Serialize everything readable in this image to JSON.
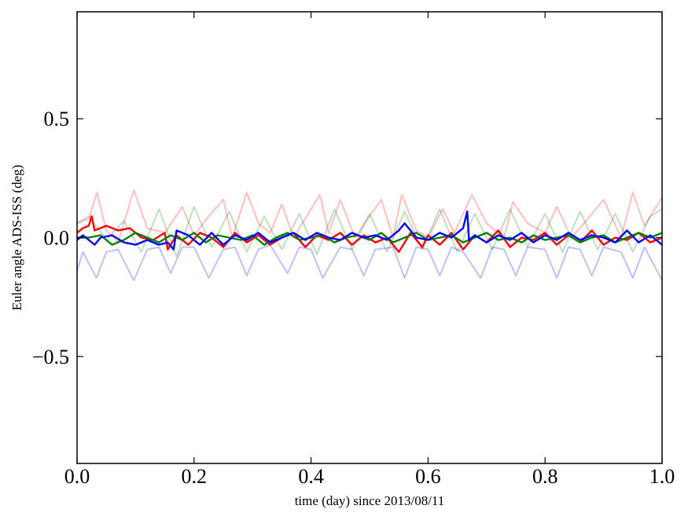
{
  "chart_data": {
    "type": "line",
    "xlabel": "time (day) since 2013/08/11",
    "ylabel": "Euler angle ADS-ISS (deg)",
    "xlim": [
      0.0,
      1.0
    ],
    "ylim": [
      -0.95,
      0.95
    ],
    "x_ticks": [
      0.0,
      0.2,
      0.4,
      0.6,
      0.8,
      1.0
    ],
    "x_tick_labels": [
      "0.0",
      "0.2",
      "0.4",
      "0.6",
      "0.8",
      "1.0"
    ],
    "y_ticks": [
      -0.5,
      0.0,
      0.5
    ],
    "y_tick_labels": [
      "−0.5",
      "0.0",
      "0.5"
    ],
    "grid": false,
    "legend": "none",
    "series": [
      {
        "color": "#ff0000",
        "opacity": 0.25,
        "x": [
          0.0,
          0.02,
          0.034,
          0.05,
          0.07,
          0.097,
          0.12,
          0.15,
          0.18,
          0.2,
          0.225,
          0.25,
          0.265,
          0.29,
          0.31,
          0.33,
          0.35,
          0.37,
          0.395,
          0.415,
          0.43,
          0.45,
          0.475,
          0.5,
          0.52,
          0.54,
          0.555,
          0.58,
          0.6,
          0.625,
          0.645,
          0.675,
          0.7,
          0.73,
          0.745,
          0.77,
          0.8,
          0.82,
          0.845,
          0.87,
          0.9,
          0.93,
          0.95,
          0.97,
          1.0
        ],
        "y": [
          0.06,
          0.08,
          0.19,
          0.03,
          -0.02,
          0.2,
          0.04,
          0.02,
          0.13,
          0.01,
          0.09,
          0.16,
          0.0,
          0.19,
          0.06,
          0.02,
          0.14,
          0.0,
          0.1,
          0.18,
          0.02,
          0.16,
          0.0,
          0.09,
          0.16,
          0.0,
          0.18,
          0.03,
          0.0,
          0.12,
          0.02,
          0.18,
          0.06,
          0.0,
          0.15,
          0.06,
          0.02,
          0.13,
          0.0,
          0.07,
          0.16,
          0.0,
          0.19,
          0.05,
          0.17
        ]
      },
      {
        "color": "#008000",
        "opacity": 0.25,
        "x": [
          0.0,
          0.02,
          0.05,
          0.08,
          0.11,
          0.14,
          0.17,
          0.2,
          0.23,
          0.26,
          0.29,
          0.32,
          0.35,
          0.38,
          0.41,
          0.44,
          0.47,
          0.5,
          0.53,
          0.56,
          0.59,
          0.62,
          0.65,
          0.68,
          0.71,
          0.74,
          0.77,
          0.8,
          0.83,
          0.86,
          0.89,
          0.92,
          0.95,
          0.98,
          1.0
        ],
        "y": [
          0.06,
          0.09,
          -0.01,
          0.07,
          -0.06,
          0.12,
          -0.08,
          0.13,
          -0.04,
          0.11,
          -0.06,
          0.09,
          -0.05,
          0.1,
          -0.07,
          0.12,
          -0.05,
          0.1,
          -0.06,
          0.11,
          -0.05,
          0.12,
          -0.06,
          0.1,
          -0.05,
          0.12,
          -0.04,
          0.1,
          -0.06,
          0.11,
          -0.05,
          0.1,
          -0.06,
          0.09,
          0.12
        ]
      },
      {
        "color": "#0000ff",
        "opacity": 0.25,
        "x": [
          0.0,
          0.01,
          0.033,
          0.05,
          0.07,
          0.097,
          0.12,
          0.14,
          0.16,
          0.18,
          0.2,
          0.225,
          0.25,
          0.27,
          0.29,
          0.31,
          0.33,
          0.36,
          0.38,
          0.4,
          0.42,
          0.45,
          0.47,
          0.49,
          0.51,
          0.54,
          0.56,
          0.58,
          0.6,
          0.62,
          0.64,
          0.66,
          0.69,
          0.71,
          0.73,
          0.75,
          0.77,
          0.8,
          0.82,
          0.84,
          0.86,
          0.88,
          0.9,
          0.93,
          0.95,
          0.97,
          1.0
        ],
        "y": [
          -0.14,
          -0.06,
          -0.17,
          -0.06,
          -0.05,
          -0.18,
          -0.05,
          -0.04,
          -0.15,
          -0.04,
          -0.04,
          -0.17,
          -0.05,
          -0.04,
          -0.16,
          -0.05,
          -0.03,
          -0.15,
          -0.04,
          -0.05,
          -0.17,
          -0.04,
          -0.05,
          -0.16,
          -0.05,
          -0.04,
          -0.17,
          -0.04,
          -0.05,
          -0.16,
          -0.04,
          -0.06,
          -0.17,
          -0.04,
          -0.05,
          -0.16,
          -0.04,
          -0.05,
          -0.17,
          -0.04,
          -0.05,
          -0.16,
          -0.04,
          -0.06,
          -0.17,
          -0.04,
          -0.18
        ]
      },
      {
        "color": "#ff0000",
        "opacity": 1,
        "x": [
          0.0,
          0.01,
          0.02,
          0.025,
          0.03,
          0.05,
          0.07,
          0.09,
          0.11,
          0.13,
          0.15,
          0.155,
          0.17,
          0.19,
          0.21,
          0.23,
          0.25,
          0.27,
          0.29,
          0.31,
          0.33,
          0.35,
          0.37,
          0.39,
          0.41,
          0.43,
          0.45,
          0.47,
          0.49,
          0.51,
          0.53,
          0.55,
          0.57,
          0.59,
          0.6,
          0.62,
          0.64,
          0.66,
          0.68,
          0.7,
          0.72,
          0.74,
          0.76,
          0.78,
          0.8,
          0.82,
          0.84,
          0.86,
          0.88,
          0.9,
          0.92,
          0.94,
          0.96,
          0.98,
          1.0
        ],
        "y": [
          0.02,
          0.04,
          0.05,
          0.09,
          0.03,
          0.05,
          0.03,
          0.04,
          0.0,
          -0.01,
          0.02,
          -0.05,
          0.01,
          -0.03,
          0.02,
          0.0,
          -0.04,
          0.02,
          -0.02,
          0.01,
          -0.03,
          0.0,
          0.02,
          -0.04,
          0.01,
          -0.01,
          0.02,
          -0.03,
          0.01,
          -0.02,
          0.0,
          -0.06,
          0.02,
          -0.04,
          0.01,
          -0.03,
          0.02,
          -0.05,
          0.01,
          -0.02,
          0.03,
          -0.04,
          0.0,
          -0.01,
          0.02,
          -0.03,
          0.01,
          -0.02,
          0.03,
          -0.03,
          0.0,
          -0.01,
          0.02,
          -0.02,
          0.0
        ]
      },
      {
        "color": "#008000",
        "opacity": 1,
        "x": [
          0.0,
          0.02,
          0.04,
          0.06,
          0.08,
          0.1,
          0.12,
          0.14,
          0.16,
          0.18,
          0.2,
          0.22,
          0.24,
          0.26,
          0.28,
          0.3,
          0.32,
          0.34,
          0.36,
          0.38,
          0.4,
          0.42,
          0.44,
          0.46,
          0.48,
          0.5,
          0.52,
          0.54,
          0.56,
          0.58,
          0.6,
          0.62,
          0.64,
          0.66,
          0.68,
          0.7,
          0.72,
          0.74,
          0.76,
          0.78,
          0.8,
          0.82,
          0.84,
          0.86,
          0.88,
          0.9,
          0.92,
          0.94,
          0.96,
          0.98,
          1.0
        ],
        "y": [
          0.0,
          0.0,
          0.01,
          -0.03,
          -0.01,
          0.02,
          0.0,
          -0.02,
          0.01,
          -0.01,
          0.02,
          -0.02,
          0.01,
          0.0,
          -0.01,
          0.01,
          -0.03,
          0.0,
          0.02,
          -0.01,
          0.0,
          0.01,
          -0.02,
          0.0,
          0.01,
          -0.01,
          0.02,
          -0.02,
          0.0,
          0.02,
          -0.01,
          0.0,
          0.01,
          -0.02,
          0.0,
          0.02,
          -0.01,
          0.0,
          -0.02,
          0.01,
          -0.01,
          0.0,
          0.01,
          -0.02,
          0.0,
          0.01,
          -0.02,
          0.0,
          0.02,
          0.0,
          0.02
        ]
      },
      {
        "color": "#0000ff",
        "opacity": 1,
        "x": [
          0.0,
          0.01,
          0.02,
          0.03,
          0.04,
          0.06,
          0.08,
          0.1,
          0.12,
          0.14,
          0.155,
          0.165,
          0.17,
          0.19,
          0.21,
          0.23,
          0.25,
          0.27,
          0.29,
          0.31,
          0.33,
          0.35,
          0.37,
          0.39,
          0.41,
          0.43,
          0.45,
          0.47,
          0.49,
          0.51,
          0.53,
          0.55,
          0.56,
          0.58,
          0.6,
          0.62,
          0.64,
          0.66,
          0.667,
          0.67,
          0.68,
          0.7,
          0.72,
          0.74,
          0.76,
          0.78,
          0.8,
          0.82,
          0.84,
          0.86,
          0.88,
          0.9,
          0.92,
          0.94,
          0.96,
          0.98,
          1.0
        ],
        "y": [
          -0.01,
          0.01,
          -0.01,
          -0.03,
          0.0,
          0.01,
          -0.02,
          -0.03,
          -0.01,
          -0.03,
          -0.02,
          -0.05,
          0.03,
          0.01,
          -0.03,
          0.02,
          -0.03,
          0.01,
          -0.01,
          0.02,
          -0.02,
          0.0,
          0.02,
          -0.01,
          0.02,
          0.0,
          -0.01,
          0.02,
          0.0,
          0.01,
          -0.01,
          0.03,
          0.06,
          0.0,
          -0.01,
          0.02,
          0.0,
          0.04,
          0.11,
          -0.01,
          0.01,
          -0.02,
          0.01,
          -0.01,
          0.02,
          -0.02,
          0.01,
          -0.01,
          0.02,
          -0.01,
          0.01,
          0.0,
          -0.02,
          0.03,
          -0.02,
          0.01,
          -0.03
        ]
      }
    ]
  }
}
